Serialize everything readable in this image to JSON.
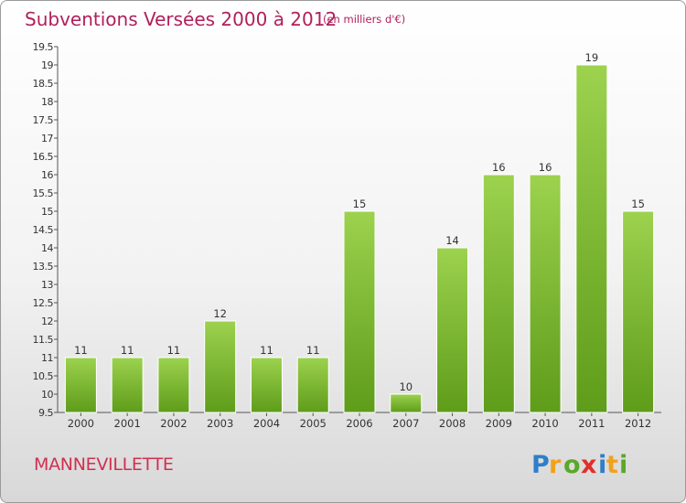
{
  "header": {
    "title": "Subventions Versées 2000 à 2012",
    "unit": "(en milliers d'€)"
  },
  "footer": {
    "commune": "MANNEVILLETTE",
    "brand": "Proxiti"
  },
  "colors": {
    "title": "#b0205a",
    "commune": "#d03050",
    "bar_top": "#9cd24e",
    "bar_bottom": "#5e9c1a",
    "axis": "#555555",
    "grid": "#d0d0d0"
  },
  "chart_data": {
    "type": "bar",
    "title": "Subventions Versées 2000 à 2012",
    "xlabel": "",
    "ylabel": "",
    "categories": [
      "2000",
      "2001",
      "2002",
      "2003",
      "2004",
      "2005",
      "2006",
      "2007",
      "2008",
      "2009",
      "2010",
      "2011",
      "2012"
    ],
    "values": [
      11,
      11,
      11,
      12,
      11,
      11,
      15,
      10,
      14,
      16,
      16,
      19,
      15
    ],
    "ylim": [
      9.5,
      19.5
    ],
    "yticks": [
      "9.5",
      "10",
      "10.5",
      "11",
      "11.5",
      "12",
      "12.5",
      "13",
      "13.5",
      "14",
      "14.5",
      "15",
      "15.5",
      "16",
      "16.5",
      "17",
      "17.5",
      "18",
      "18.5",
      "19",
      "19.5"
    ],
    "grid": false,
    "legend": "none"
  }
}
